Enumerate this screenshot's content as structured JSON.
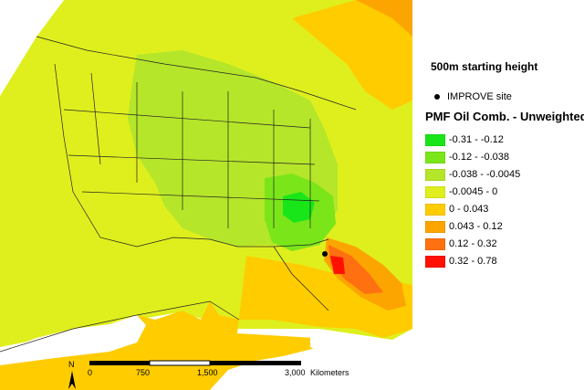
{
  "map": {
    "starting_height": "500m starting height",
    "site_label": "IMPROVE site",
    "layer_title": "PMF Oil Comb. - Unweighted",
    "classes": [
      {
        "label": "-0.31 - -0.12",
        "color": "#19e619"
      },
      {
        "label": "-0.12 - -0.038",
        "color": "#7ae619"
      },
      {
        "label": "-0.038 - -0.0045",
        "color": "#b5e62a"
      },
      {
        "label": "-0.0045 - 0",
        "color": "#dfef1d"
      },
      {
        "label": "0 - 0.043",
        "color": "#ffcc00"
      },
      {
        "label": "0.043 - 0.12",
        "color": "#fca500"
      },
      {
        "label": "0.12 - 0.32",
        "color": "#ff7010"
      },
      {
        "label": "0.32 - 0.78",
        "color": "#ff1000"
      }
    ],
    "scale_bar": {
      "ticks": [
        "0",
        "750",
        "1,500",
        "3,000"
      ],
      "units": "Kilometers"
    },
    "north_label": "N"
  }
}
